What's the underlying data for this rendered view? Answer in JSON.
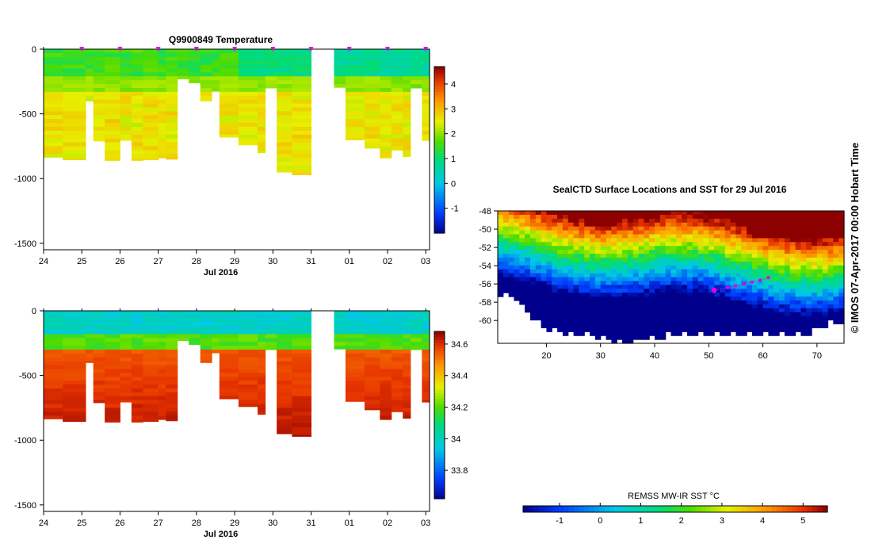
{
  "credit": "© IMOS 07-Apr-2017 00:00 Hobart Time",
  "chart_data": [
    {
      "type": "heatmap",
      "id": "temperature",
      "title": "Q9900849  Temperature",
      "xlabel": "Jul 2016",
      "x_ticks": [
        "24",
        "25",
        "26",
        "27",
        "28",
        "29",
        "30",
        "31",
        "01",
        "02",
        "03"
      ],
      "xlim": [
        24,
        34.1
      ],
      "ylim": [
        -1550,
        0
      ],
      "y_ticks": [
        0,
        -500,
        -1000,
        -1500
      ],
      "y_tick_labels": [
        "0",
        "-500",
        "-1000",
        "-1500"
      ],
      "surface_markers_day": [
        25,
        26,
        27,
        28,
        29,
        30,
        31,
        32,
        33,
        34
      ],
      "colorbar": {
        "min": -2,
        "max": 4.7,
        "ticks": [
          -1,
          0,
          1,
          2,
          3,
          4
        ],
        "tick_labels": [
          "-1",
          "0",
          "1",
          "2",
          "3",
          "4"
        ]
      },
      "layers": [
        {
          "depth_top": 0,
          "depth_bottom": -200,
          "base_value": 1.5
        },
        {
          "depth_top": -200,
          "depth_bottom": -330,
          "base_value": 2.0
        },
        {
          "depth_top": -330,
          "depth_bottom": -1000,
          "base_value": 2.6
        }
      ],
      "profiles_max_depth": [
        {
          "day": 24.0,
          "max_depth": -835
        },
        {
          "day": 24.5,
          "max_depth": -855
        },
        {
          "day": 25.1,
          "max_depth": -400
        },
        {
          "day": 25.3,
          "max_depth": -710
        },
        {
          "day": 25.6,
          "max_depth": -860
        },
        {
          "day": 26.0,
          "max_depth": -705
        },
        {
          "day": 26.3,
          "max_depth": -860
        },
        {
          "day": 26.6,
          "max_depth": -855
        },
        {
          "day": 27.0,
          "max_depth": -840
        },
        {
          "day": 27.2,
          "max_depth": -850
        },
        {
          "day": 27.5,
          "max_depth": -230
        },
        {
          "day": 27.8,
          "max_depth": -260
        },
        {
          "day": 28.1,
          "max_depth": -400
        },
        {
          "day": 28.4,
          "max_depth": -325
        },
        {
          "day": 28.6,
          "max_depth": -680
        },
        {
          "day": 29.1,
          "max_depth": -740
        },
        {
          "day": 29.6,
          "max_depth": -800
        },
        {
          "day": 29.8,
          "max_depth": -300
        },
        {
          "day": 30.1,
          "max_depth": -950
        },
        {
          "day": 30.5,
          "max_depth": -970
        },
        {
          "day": 31.0,
          "max_depth": null
        },
        {
          "day": 31.6,
          "max_depth": -295
        },
        {
          "day": 31.9,
          "max_depth": -700
        },
        {
          "day": 32.4,
          "max_depth": -765
        },
        {
          "day": 32.8,
          "max_depth": -840
        },
        {
          "day": 33.1,
          "max_depth": -780
        },
        {
          "day": 33.4,
          "max_depth": -830
        },
        {
          "day": 33.6,
          "max_depth": -300
        },
        {
          "day": 33.9,
          "max_depth": -705
        }
      ]
    },
    {
      "type": "heatmap",
      "id": "salinity",
      "title": "",
      "xlabel": "Jul 2016",
      "x_ticks": [
        "24",
        "25",
        "26",
        "27",
        "28",
        "29",
        "30",
        "31",
        "01",
        "02",
        "03"
      ],
      "xlim": [
        24,
        34.1
      ],
      "ylim": [
        -1550,
        0
      ],
      "y_ticks": [
        0,
        -500,
        -1000,
        -1500
      ],
      "y_tick_labels": [
        "0",
        "-500",
        "-1000",
        "-1500"
      ],
      "colorbar": {
        "min": 33.62,
        "max": 34.68,
        "ticks": [
          33.8,
          34,
          34.2,
          34.4,
          34.6
        ],
        "tick_labels": [
          "33.8",
          "34",
          "34.2",
          "34.4",
          "34.6"
        ]
      },
      "layers": [
        {
          "depth_top": 0,
          "depth_bottom": -180,
          "base_value": 33.98
        },
        {
          "depth_top": -180,
          "depth_bottom": -300,
          "base_value": 34.2
        },
        {
          "depth_top": -300,
          "depth_bottom": -1000,
          "base_value": 34.55
        }
      ]
    },
    {
      "type": "heatmap",
      "id": "sst_map",
      "title": "SealCTD Surface Locations and SST for 29 Jul 2016",
      "xlim": [
        11,
        75
      ],
      "ylim": [
        -62.5,
        -48
      ],
      "x_ticks": [
        20,
        30,
        40,
        50,
        60,
        70
      ],
      "x_tick_labels": [
        "20",
        "30",
        "40",
        "50",
        "60",
        "70"
      ],
      "y_ticks": [
        -48,
        -50,
        -52,
        -54,
        -56,
        -58,
        -60
      ],
      "y_tick_labels": [
        "-48",
        "-50",
        "-52",
        "-54",
        "-56",
        "-58",
        "-60"
      ],
      "colorbar": {
        "label": "REMSS MW-IR SST °C",
        "min": -1.9,
        "max": 5.6,
        "ticks": [
          -1,
          0,
          1,
          2,
          3,
          4,
          5
        ],
        "tick_labels": [
          "-1",
          "0",
          "1",
          "2",
          "3",
          "4",
          "5"
        ]
      },
      "track_points": [
        {
          "lon": 51.0,
          "lat": -56.7
        },
        {
          "lon": 53.5,
          "lat": -56.4
        },
        {
          "lon": 55.0,
          "lat": -56.2
        },
        {
          "lon": 56.5,
          "lat": -56.0
        },
        {
          "lon": 58.0,
          "lat": -55.8
        },
        {
          "lon": 59.5,
          "lat": -55.6
        },
        {
          "lon": 61.0,
          "lat": -55.3
        }
      ]
    }
  ]
}
